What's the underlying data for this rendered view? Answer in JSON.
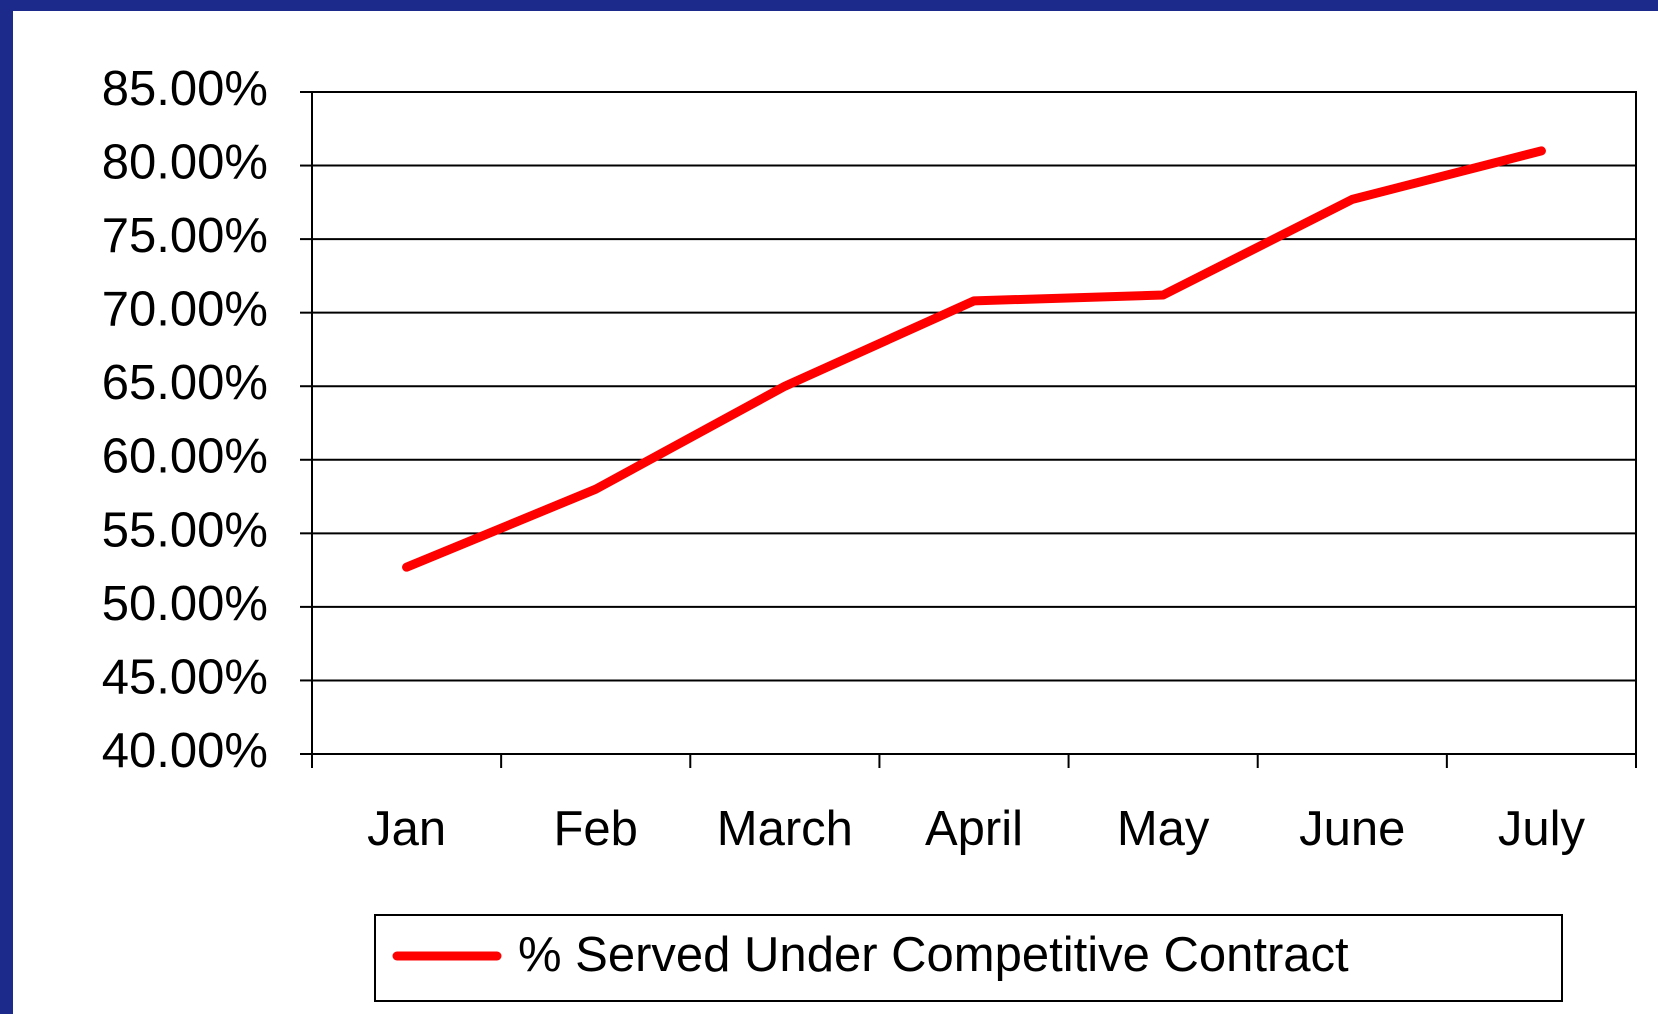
{
  "chart_data": {
    "type": "line",
    "categories": [
      "Jan",
      "Feb",
      "March",
      "April",
      "May",
      "June",
      "July"
    ],
    "series": [
      {
        "name": "% Served Under Competitive Contract",
        "color": "#ff0000",
        "values": [
          52.7,
          58,
          65,
          70.8,
          71.2,
          77.7,
          81
        ]
      }
    ],
    "ylim": [
      40,
      85
    ],
    "yticks": [
      {
        "value": 40,
        "label": "40.00%"
      },
      {
        "value": 45,
        "label": "45.00%"
      },
      {
        "value": 50,
        "label": "50.00%"
      },
      {
        "value": 55,
        "label": "55.00%"
      },
      {
        "value": 60,
        "label": "60.00%"
      },
      {
        "value": 65,
        "label": "65.00%"
      },
      {
        "value": 70,
        "label": "70.00%"
      },
      {
        "value": 75,
        "label": "75.00%"
      },
      {
        "value": 80,
        "label": "80.00%"
      },
      {
        "value": 85,
        "label": "85.00%"
      }
    ],
    "grid": true,
    "legend": "bottom"
  }
}
